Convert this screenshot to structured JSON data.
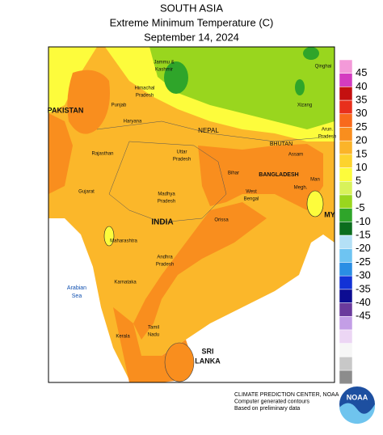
{
  "header": {
    "title": [
      "SOUTH ASIA",
      "Extreme Minimum Temperature (C)",
      "September 14, 2024"
    ]
  },
  "map": {
    "labels": [
      [
        "PAKISTAN"
      ],
      [
        "Jammu &",
        "Kashmir"
      ],
      [
        "Himachal",
        "Pradesh"
      ],
      [
        "Punjab"
      ],
      [
        "Haryana"
      ],
      [
        "Rajasthan"
      ],
      [
        "Uttar",
        "Pradesh"
      ],
      [
        "NEPAL"
      ],
      [
        "BHUTAN"
      ],
      [
        "Qinghai"
      ],
      [
        "Xizang"
      ],
      [
        "Arun.",
        "Pradesh"
      ],
      [
        "Assam"
      ],
      [
        "Bihar"
      ],
      [
        "BANGLADESH"
      ],
      [
        "Megh."
      ],
      [
        "Man"
      ],
      [
        "West",
        "Bengal"
      ],
      [
        "Gujarat"
      ],
      [
        "Madhya",
        "Pradesh"
      ],
      [
        "INDIA"
      ],
      [
        "Orissa"
      ],
      [
        "Maharashtra"
      ],
      [
        "Andhra",
        "Pradesh"
      ],
      [
        "Karnataka"
      ],
      [
        "Tamil",
        "Nadu"
      ],
      [
        "Kerala"
      ],
      [
        "SRI",
        "LANKA"
      ],
      [
        "Arabian",
        "Sea"
      ],
      [
        "MY"
      ]
    ]
  },
  "legend": {
    "colors": [
      "#f39ad9",
      "#d43cc0",
      "#c41010",
      "#e8301c",
      "#f86a1c",
      "#f98e1e",
      "#fbb429",
      "#fdd32e",
      "#fdfc3c",
      "#d8f25a",
      "#99d61e",
      "#2fa52a",
      "#0b6d1d",
      "#b4e0f6",
      "#6ec4f2",
      "#2a8ee4",
      "#1232d6",
      "#0c0c92",
      "#6a3a9c",
      "#c39ee6",
      "#ecd6f4",
      "#f6f6f6",
      "#c8c8c8",
      "#8c8c8c"
    ],
    "ticks": [
      "45",
      "40",
      "35",
      "30",
      "25",
      "20",
      "15",
      "10",
      "5",
      "0",
      "-5",
      "-10",
      "-15",
      "-20",
      "-25",
      "-30",
      "-35",
      "-40",
      "-45"
    ]
  },
  "footer": {
    "lines": [
      "CLIMATE PREDICTION CENTER, NOAA",
      "Computer generated contours",
      "Based on preliminary data"
    ],
    "logo": "NOAA"
  }
}
